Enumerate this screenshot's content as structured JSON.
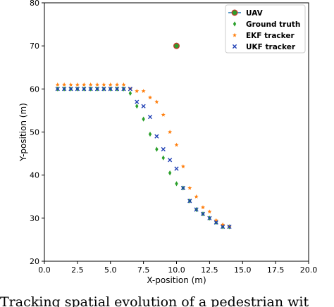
{
  "caption": "Tracking spatial evolution of a pedestrian wit",
  "chart_data": {
    "type": "scatter",
    "title": "",
    "xlabel": "X-position (m)",
    "ylabel": "Y-position (m)",
    "xlim": [
      0.0,
      20.0
    ],
    "ylim": [
      20,
      80
    ],
    "xticks": [
      "0.0",
      "2.5",
      "5.0",
      "7.5",
      "10.0",
      "12.5",
      "15.0",
      "17.5",
      "20.0"
    ],
    "yticks": [
      "20",
      "30",
      "40",
      "50",
      "60",
      "70",
      "80"
    ],
    "grid": false,
    "legend_position": "top-right",
    "series": [
      {
        "name": "UAV",
        "marker": "circle-line",
        "color": "#2ca02c",
        "edge_color": "#c0392b",
        "line_color": "#1f77b4",
        "x": [
          10.0
        ],
        "y": [
          70.0
        ]
      },
      {
        "name": "Ground truth",
        "marker": "diamond",
        "color": "#2ca02c",
        "x": [
          1.0,
          1.5,
          2.0,
          2.5,
          3.0,
          3.5,
          4.0,
          4.5,
          5.0,
          5.5,
          6.0,
          6.5,
          7.0,
          7.5,
          8.0,
          8.5,
          9.0,
          9.5,
          10.0,
          10.5,
          11.0,
          11.5,
          12.0,
          12.5,
          13.0,
          13.5,
          14.0
        ],
        "y": [
          60.0,
          60.0,
          60.0,
          60.0,
          60.0,
          60.0,
          60.0,
          60.0,
          60.0,
          60.0,
          60.0,
          59.0,
          56.0,
          53.0,
          49.5,
          46.0,
          44.0,
          40.5,
          38.0,
          37.0,
          34.0,
          32.0,
          31.0,
          30.0,
          29.0,
          28.0,
          28.0
        ]
      },
      {
        "name": "EKF tracker",
        "marker": "star",
        "color": "#ff7f0e",
        "x": [
          1.0,
          1.5,
          2.0,
          2.5,
          3.0,
          3.5,
          4.0,
          4.5,
          5.0,
          5.5,
          6.0,
          6.5,
          7.0,
          7.5,
          8.0,
          8.5,
          9.0,
          9.5,
          10.0,
          10.5,
          11.0,
          11.5,
          12.0,
          12.5,
          13.0,
          13.5,
          14.0
        ],
        "y": [
          61.0,
          61.0,
          61.0,
          61.0,
          61.0,
          61.0,
          61.0,
          61.0,
          61.0,
          61.0,
          61.0,
          60.0,
          59.5,
          59.5,
          58.0,
          57.0,
          54.0,
          50.0,
          47.0,
          42.0,
          37.0,
          35.0,
          32.5,
          31.5,
          29.5,
          28.5,
          28.0
        ]
      },
      {
        "name": "UKF tracker",
        "marker": "x",
        "color": "#1f3fb4",
        "x": [
          1.0,
          1.5,
          2.0,
          2.5,
          3.0,
          3.5,
          4.0,
          4.5,
          5.0,
          5.5,
          6.0,
          6.5,
          7.0,
          7.5,
          8.0,
          8.5,
          9.0,
          9.5,
          10.0,
          10.5,
          11.0,
          11.5,
          12.0,
          12.5,
          13.0,
          13.5,
          14.0
        ],
        "y": [
          60.0,
          60.0,
          60.0,
          60.0,
          60.0,
          60.0,
          60.0,
          60.0,
          60.0,
          60.0,
          60.0,
          60.0,
          57.0,
          56.0,
          53.5,
          49.0,
          46.0,
          43.5,
          41.5,
          37.0,
          34.0,
          32.0,
          31.0,
          30.0,
          29.0,
          28.0,
          28.0
        ]
      }
    ]
  }
}
